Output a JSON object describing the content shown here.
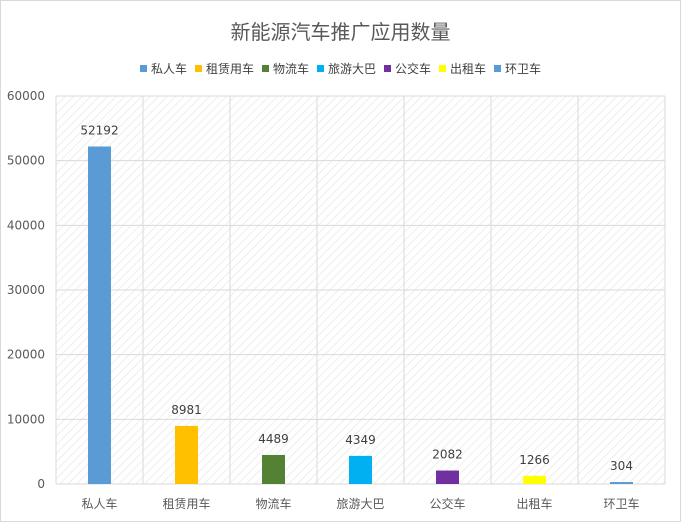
{
  "chart_data": {
    "type": "bar",
    "title": "新能源汽车推广应用数量",
    "xlabel": "",
    "ylabel": "",
    "categories": [
      "私人车",
      "租赁用车",
      "物流车",
      "旅游大巴",
      "公交车",
      "出租车",
      "环卫车"
    ],
    "values": [
      52192,
      8981,
      4489,
      4349,
      2082,
      1266,
      304
    ],
    "colors": [
      "#5b9bd5",
      "#ffc000",
      "#548235",
      "#00b0f0",
      "#7030a0",
      "#ffff00",
      "#5b9bd5"
    ],
    "ylim": [
      0,
      60000
    ],
    "yticks": [
      0,
      10000,
      20000,
      30000,
      40000,
      50000,
      60000
    ],
    "legend": {
      "position": "top",
      "entries": [
        "私人车",
        "租赁用车",
        "物流车",
        "旅游大巴",
        "公交车",
        "出租车",
        "环卫车"
      ]
    },
    "grid": true,
    "plot_background": "diagonal-hatch"
  }
}
